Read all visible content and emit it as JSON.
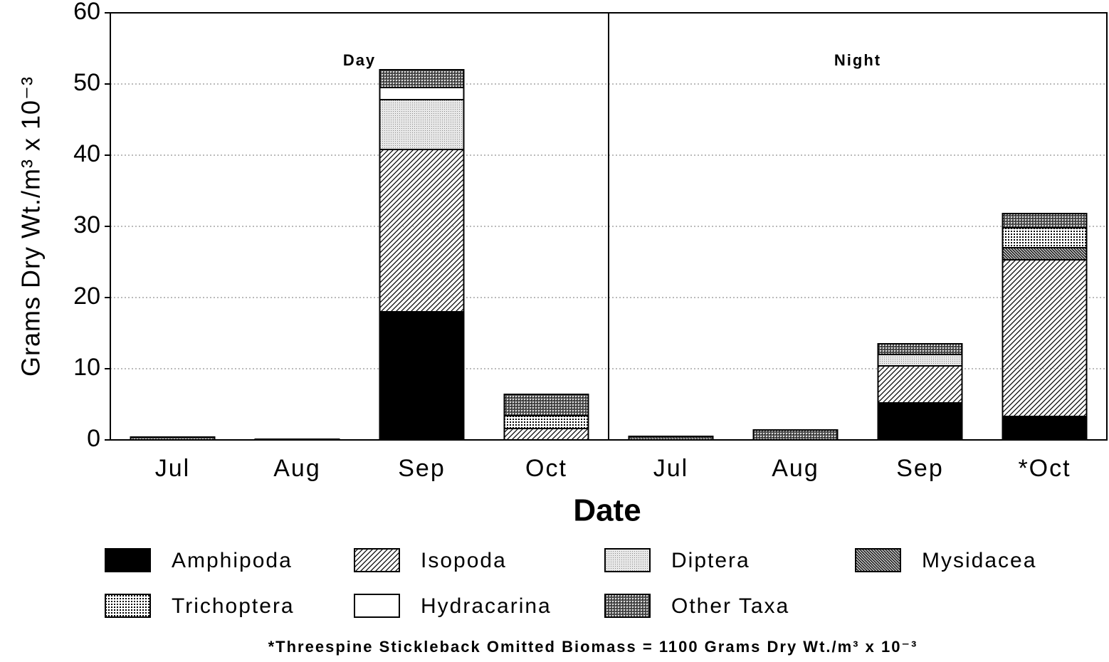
{
  "chart_data": {
    "type": "stacked_bar",
    "x_label": "Date",
    "y_label": "Grams Dry Wt./m³ x 10⁻³",
    "annotations": [
      "Day",
      "Night"
    ],
    "note": "*Threespine Stickleback Omitted   Biomass = 1100 Grams Dry Wt./m³ x 10⁻³",
    "categories": [
      "Jul",
      "Aug",
      "Sep",
      "Oct",
      "Jul",
      "Aug",
      "Sep",
      "*Oct"
    ],
    "series": [
      {
        "name": "Amphipoda",
        "color": "#000000",
        "pattern": "solid",
        "values": [
          0,
          0,
          18,
          0,
          0,
          0,
          5.2,
          3.3
        ]
      },
      {
        "name": "Isopoda",
        "color": "#000000",
        "pattern": "hatch",
        "values": [
          0,
          0,
          22.8,
          1.6,
          0,
          0,
          5.2,
          22
        ]
      },
      {
        "name": "Diptera",
        "color": "#888888",
        "pattern": "stipple",
        "values": [
          0,
          0,
          7,
          0,
          0,
          0,
          1.6,
          0
        ]
      },
      {
        "name": "Mysidacea",
        "color": "#000000",
        "pattern": "dense-hatch",
        "values": [
          0,
          0,
          0,
          0,
          0,
          0,
          0,
          1.7
        ]
      },
      {
        "name": "Trichoptera",
        "color": "#000000",
        "pattern": "grid",
        "values": [
          0,
          0,
          0,
          1.8,
          0,
          0,
          0,
          2.8
        ]
      },
      {
        "name": "Hydracarina",
        "color": "#ffffff",
        "pattern": "solid",
        "values": [
          0,
          0,
          1.7,
          0,
          0,
          0,
          0,
          0
        ]
      },
      {
        "name": "Other Taxa",
        "color": "#000000",
        "pattern": "crosshatch",
        "values": [
          0.4,
          0.1,
          2.5,
          3,
          0.5,
          1.4,
          1.5,
          2
        ]
      }
    ],
    "ylim": [
      0,
      60
    ],
    "yticks": [
      0,
      10,
      20,
      30,
      40,
      50,
      60
    ],
    "grid": true
  }
}
